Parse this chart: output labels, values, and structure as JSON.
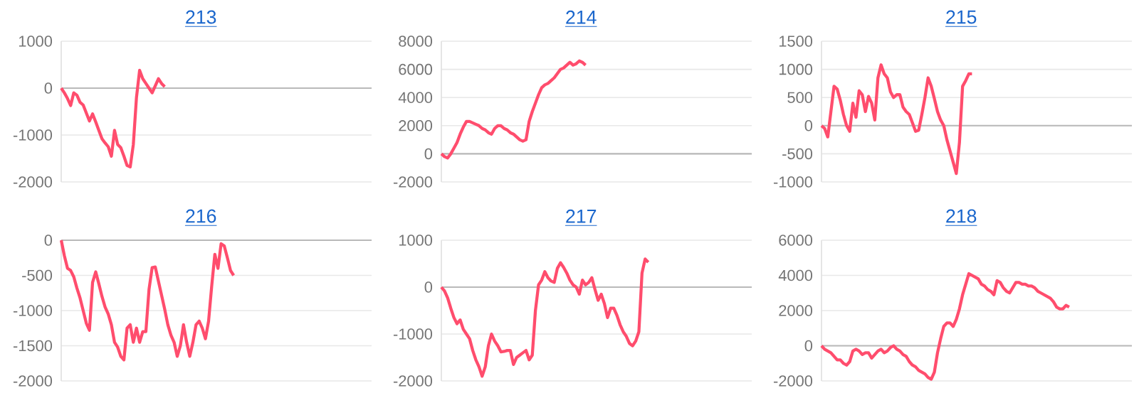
{
  "chart_data": [
    {
      "type": "line",
      "title": "213",
      "color": "#ff4d6d",
      "grid": "y",
      "ylim": [
        -2000,
        1000
      ],
      "yticks": [
        -2000,
        -1000,
        0,
        1000
      ],
      "categories": [
        null,
        null,
        null,
        null,
        null,
        null,
        null,
        null,
        null,
        null,
        null,
        null,
        null,
        null,
        null,
        null,
        null,
        null,
        null,
        null,
        null,
        null,
        null,
        null,
        null,
        null,
        null,
        null,
        null,
        null,
        null,
        null,
        null,
        null,
        null,
        null,
        null,
        null,
        null,
        null,
        null,
        null,
        null,
        null,
        null,
        null,
        null,
        null,
        null,
        null,
        null,
        null,
        null,
        null,
        null,
        null,
        null,
        null,
        null,
        null,
        null,
        null,
        null,
        null,
        null,
        null,
        null,
        null,
        null,
        null,
        null,
        null,
        null,
        null,
        null,
        null,
        null,
        null,
        null,
        null,
        null,
        null,
        null,
        null,
        null,
        null,
        null,
        null,
        null,
        null,
        null,
        null,
        null,
        null,
        null,
        null,
        null,
        null,
        null,
        null
      ],
      "values": [
        0,
        -100,
        -220,
        -370,
        -100,
        -150,
        -300,
        -360,
        -530,
        -700,
        -550,
        -720,
        -900,
        -1080,
        -1170,
        -1250,
        -1450,
        -900,
        -1200,
        -1270,
        -1450,
        -1650,
        -1680,
        -1200,
        -200,
        380,
        200,
        100,
        0,
        -100,
        50,
        200,
        100,
        30,
        null,
        null,
        null,
        null,
        null,
        null,
        null,
        null,
        null,
        null,
        null,
        null,
        null,
        null,
        null,
        null,
        null,
        null,
        null,
        null,
        null,
        null,
        null,
        null,
        null,
        null,
        null,
        null,
        null,
        null,
        null,
        null,
        null,
        null,
        null,
        null,
        null,
        null,
        null,
        null,
        null,
        null,
        null,
        null,
        null,
        null,
        null,
        null,
        null,
        null,
        null,
        null,
        null,
        null,
        null,
        null,
        null,
        null,
        null,
        null,
        null,
        null,
        null,
        null,
        null,
        null
      ]
    },
    {
      "type": "line",
      "title": "214",
      "color": "#ff4d6d",
      "grid": "y",
      "ylim": [
        -2000,
        8000
      ],
      "yticks": [
        -2000,
        0,
        2000,
        4000,
        6000,
        8000
      ],
      "categories": [
        null,
        null,
        null,
        null,
        null,
        null,
        null,
        null,
        null,
        null,
        null,
        null,
        null,
        null,
        null,
        null,
        null,
        null,
        null,
        null,
        null,
        null,
        null,
        null,
        null,
        null,
        null,
        null,
        null,
        null,
        null,
        null,
        null,
        null,
        null,
        null,
        null,
        null,
        null,
        null,
        null,
        null,
        null,
        null,
        null,
        null,
        null,
        null,
        null,
        null,
        null,
        null,
        null,
        null,
        null,
        null,
        null,
        null,
        null,
        null,
        null,
        null,
        null,
        null,
        null,
        null,
        null,
        null,
        null,
        null,
        null,
        null,
        null,
        null,
        null,
        null,
        null,
        null,
        null,
        null,
        null,
        null,
        null,
        null,
        null,
        null,
        null,
        null,
        null,
        null,
        null,
        null,
        null,
        null,
        null,
        null,
        null,
        null,
        null,
        null
      ],
      "values": [
        0,
        -200,
        -300,
        0,
        400,
        800,
        1400,
        1900,
        2300,
        2300,
        2200,
        2100,
        2000,
        1800,
        1700,
        1500,
        1400,
        1800,
        2000,
        2000,
        1800,
        1700,
        1500,
        1400,
        1200,
        1000,
        900,
        1000,
        2300,
        3000,
        3600,
        4200,
        4700,
        4900,
        5000,
        5200,
        5400,
        5700,
        6000,
        6100,
        6300,
        6500,
        6300,
        6400,
        6600,
        6500,
        6300,
        null,
        null,
        null,
        null,
        null,
        null,
        null,
        null,
        null,
        null,
        null,
        null,
        null,
        null,
        null,
        null,
        null,
        null,
        null,
        null,
        null,
        null,
        null,
        null,
        null,
        null,
        null,
        null,
        null,
        null,
        null,
        null,
        null,
        null,
        null,
        null,
        null,
        null,
        null,
        null,
        null,
        null,
        null,
        null,
        null,
        null,
        null,
        null,
        null,
        null,
        null,
        null,
        null
      ]
    },
    {
      "type": "line",
      "title": "215",
      "color": "#ff4d6d",
      "grid": "y",
      "ylim": [
        -1000,
        1500
      ],
      "yticks": [
        -1000,
        -500,
        0,
        500,
        1000,
        1500
      ],
      "categories": [
        null,
        null,
        null,
        null,
        null,
        null,
        null,
        null,
        null,
        null,
        null,
        null,
        null,
        null,
        null,
        null,
        null,
        null,
        null,
        null,
        null,
        null,
        null,
        null,
        null,
        null,
        null,
        null,
        null,
        null,
        null,
        null,
        null,
        null,
        null,
        null,
        null,
        null,
        null,
        null,
        null,
        null,
        null,
        null,
        null,
        null,
        null,
        null,
        null,
        null,
        null,
        null,
        null,
        null,
        null,
        null,
        null,
        null,
        null,
        null,
        null,
        null,
        null,
        null,
        null,
        null,
        null,
        null,
        null,
        null,
        null,
        null,
        null,
        null,
        null,
        null,
        null,
        null,
        null,
        null,
        null,
        null,
        null,
        null,
        null,
        null,
        null,
        null,
        null,
        null,
        null,
        null,
        null,
        null,
        null,
        null,
        null,
        null,
        null,
        null
      ],
      "values": [
        0,
        -50,
        -200,
        250,
        700,
        650,
        450,
        200,
        0,
        -100,
        400,
        150,
        620,
        550,
        250,
        520,
        400,
        100,
        850,
        1080,
        920,
        850,
        600,
        500,
        550,
        550,
        330,
        250,
        200,
        50,
        -100,
        -80,
        200,
        500,
        850,
        700,
        480,
        250,
        100,
        0,
        -250,
        -450,
        -650,
        -850,
        -300,
        700,
        800,
        920,
        920,
        null,
        null,
        null,
        null,
        null,
        null,
        null,
        null,
        null,
        null,
        null,
        null,
        null,
        null,
        null,
        null,
        null,
        null,
        null,
        null,
        null,
        null,
        null,
        null,
        null,
        null,
        null,
        null,
        null,
        null,
        null,
        null,
        null,
        null,
        null,
        null,
        null,
        null,
        null,
        null,
        null,
        null,
        null,
        null,
        null,
        null,
        null,
        null,
        null,
        null,
        null
      ]
    },
    {
      "type": "line",
      "title": "216",
      "color": "#ff4d6d",
      "grid": "y",
      "ylim": [
        -2000,
        0
      ],
      "yticks": [
        -2000,
        -1500,
        -1000,
        -500,
        0
      ],
      "categories": [
        null,
        null,
        null,
        null,
        null,
        null,
        null,
        null,
        null,
        null,
        null,
        null,
        null,
        null,
        null,
        null,
        null,
        null,
        null,
        null,
        null,
        null,
        null,
        null,
        null,
        null,
        null,
        null,
        null,
        null,
        null,
        null,
        null,
        null,
        null,
        null,
        null,
        null,
        null,
        null,
        null,
        null,
        null,
        null,
        null,
        null,
        null,
        null,
        null,
        null,
        null,
        null,
        null,
        null,
        null,
        null,
        null,
        null,
        null,
        null,
        null,
        null,
        null,
        null,
        null,
        null,
        null,
        null,
        null,
        null,
        null,
        null,
        null,
        null,
        null,
        null,
        null,
        null,
        null,
        null,
        null,
        null,
        null,
        null,
        null,
        null,
        null,
        null,
        null,
        null,
        null,
        null,
        null,
        null,
        null,
        null,
        null,
        null,
        null,
        null
      ],
      "values": [
        0,
        -220,
        -400,
        -430,
        -520,
        -680,
        -820,
        -1000,
        -1180,
        -1280,
        -600,
        -450,
        -620,
        -800,
        -950,
        -1050,
        -1200,
        -1450,
        -1520,
        -1650,
        -1700,
        -1250,
        -1200,
        -1450,
        -1250,
        -1450,
        -1300,
        -1300,
        -700,
        -390,
        -380,
        -580,
        -780,
        -980,
        -1200,
        -1350,
        -1450,
        -1650,
        -1500,
        -1200,
        -1450,
        -1650,
        -1450,
        -1200,
        -1150,
        -1250,
        -1400,
        -1150,
        -650,
        -200,
        -400,
        -50,
        -80,
        -250,
        -430,
        -500,
        null,
        null,
        null,
        null,
        null,
        null,
        null,
        null,
        null,
        null,
        null,
        null,
        null,
        null,
        null,
        null,
        null,
        null,
        null,
        null,
        null,
        null,
        null,
        null,
        null,
        null,
        null,
        null,
        null,
        null,
        null,
        null,
        null,
        null,
        null,
        null,
        null,
        null,
        null,
        null,
        null,
        null,
        null,
        null
      ]
    },
    {
      "type": "line",
      "title": "217",
      "color": "#ff4d6d",
      "grid": "y",
      "ylim": [
        -2000,
        1000
      ],
      "yticks": [
        -2000,
        -1000,
        0,
        1000
      ],
      "categories": [
        null,
        null,
        null,
        null,
        null,
        null,
        null,
        null,
        null,
        null,
        null,
        null,
        null,
        null,
        null,
        null,
        null,
        null,
        null,
        null,
        null,
        null,
        null,
        null,
        null,
        null,
        null,
        null,
        null,
        null,
        null,
        null,
        null,
        null,
        null,
        null,
        null,
        null,
        null,
        null,
        null,
        null,
        null,
        null,
        null,
        null,
        null,
        null,
        null,
        null,
        null,
        null,
        null,
        null,
        null,
        null,
        null,
        null,
        null,
        null,
        null,
        null,
        null,
        null,
        null,
        null,
        null,
        null,
        null,
        null,
        null,
        null,
        null,
        null,
        null,
        null,
        null,
        null,
        null,
        null,
        null,
        null,
        null,
        null,
        null,
        null,
        null,
        null,
        null,
        null,
        null,
        null,
        null,
        null,
        null,
        null,
        null,
        null,
        null,
        null
      ],
      "values": [
        0,
        -80,
        -230,
        -450,
        -650,
        -780,
        -700,
        -900,
        -1000,
        -1100,
        -1350,
        -1550,
        -1700,
        -1900,
        -1700,
        -1250,
        -1000,
        -1150,
        -1250,
        -1380,
        -1370,
        -1350,
        -1350,
        -1650,
        -1500,
        -1450,
        -1400,
        -1350,
        -1550,
        -1450,
        -500,
        50,
        150,
        330,
        200,
        130,
        100,
        400,
        520,
        420,
        300,
        150,
        50,
        0,
        -150,
        150,
        50,
        100,
        200,
        -50,
        -280,
        -150,
        -350,
        -650,
        -450,
        -450,
        -600,
        -800,
        -950,
        -1050,
        -1200,
        -1250,
        -1150,
        -950,
        300,
        600,
        530,
        null,
        null,
        null,
        null,
        null,
        null,
        null,
        null,
        null,
        null,
        null,
        null,
        null,
        null,
        null,
        null,
        null,
        null,
        null,
        null,
        null,
        null,
        null,
        null,
        null,
        null,
        null,
        null,
        null,
        null,
        null,
        null,
        null
      ]
    },
    {
      "type": "line",
      "title": "218",
      "color": "#ff4d6d",
      "grid": "y",
      "ylim": [
        -2000,
        6000
      ],
      "yticks": [
        -2000,
        0,
        2000,
        4000,
        6000
      ],
      "categories": [
        null,
        null,
        null,
        null,
        null,
        null,
        null,
        null,
        null,
        null,
        null,
        null,
        null,
        null,
        null,
        null,
        null,
        null,
        null,
        null,
        null,
        null,
        null,
        null,
        null,
        null,
        null,
        null,
        null,
        null,
        null,
        null,
        null,
        null,
        null,
        null,
        null,
        null,
        null,
        null,
        null,
        null,
        null,
        null,
        null,
        null,
        null,
        null,
        null,
        null,
        null,
        null,
        null,
        null,
        null,
        null,
        null,
        null,
        null,
        null,
        null,
        null,
        null,
        null,
        null,
        null,
        null,
        null,
        null,
        null,
        null,
        null,
        null,
        null,
        null,
        null,
        null,
        null,
        null,
        null,
        null,
        null,
        null,
        null,
        null,
        null,
        null,
        null,
        null,
        null,
        null,
        null,
        null,
        null,
        null,
        null,
        null,
        null,
        null,
        null
      ],
      "values": [
        0,
        -200,
        -300,
        -400,
        -600,
        -800,
        -800,
        -1000,
        -1100,
        -900,
        -300,
        -200,
        -300,
        -500,
        -400,
        -400,
        -700,
        -500,
        -300,
        -200,
        -400,
        -300,
        -100,
        0,
        -200,
        -300,
        -500,
        -600,
        -900,
        -1100,
        -1200,
        -1400,
        -1500,
        -1600,
        -1800,
        -1900,
        -1500,
        -400,
        400,
        1100,
        1300,
        1300,
        1100,
        1500,
        2100,
        2900,
        3500,
        4100,
        4000,
        3900,
        3800,
        3500,
        3400,
        3200,
        3100,
        2900,
        3700,
        3600,
        3300,
        3100,
        3000,
        3300,
        3600,
        3600,
        3500,
        3500,
        3400,
        3400,
        3300,
        3100,
        3000,
        2900,
        2800,
        2700,
        2500,
        2200,
        2100,
        2100,
        2300,
        2200,
        null,
        null,
        null,
        null,
        null,
        null,
        null,
        null,
        null,
        null,
        null,
        null,
        null,
        null,
        null,
        null,
        null,
        null,
        null,
        null
      ]
    }
  ]
}
